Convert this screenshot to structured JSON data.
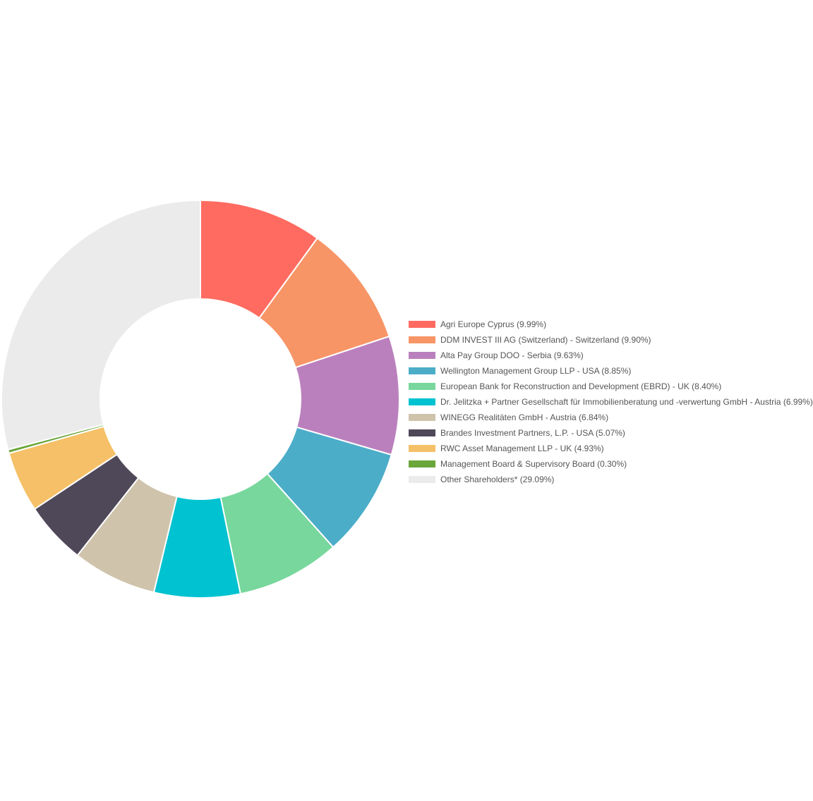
{
  "chart_data": {
    "type": "pie",
    "variant": "donut",
    "title": "",
    "legend_position": "right",
    "categories": [
      "Agri Europe Cyprus (9.99%)",
      "DDM INVEST III AG (Switzerland) - Switzerland (9.90%)",
      "Alta Pay Group DOO - Serbia (9.63%)",
      "Wellington Management Group LLP - USA (8.85%)",
      "European Bank for Reconstruction and Development (EBRD) - UK (8.40%)",
      "Dr. Jelitzka + Partner Gesellschaft für Immobilienberatung und -verwertung GmbH - Austria (6.99%)",
      "WINEGG Realitäten GmbH - Austria (6.84%)",
      "Brandes Investment Partners, L.P. - USA (5.07%)",
      "RWC Asset Management LLP - UK (4.93%)",
      "Management Board & Supervisory Board (0.30%)",
      "Other Shareholders* (29.09%)"
    ],
    "values": [
      9.99,
      9.9,
      9.63,
      8.85,
      8.4,
      6.99,
      6.84,
      5.07,
      4.93,
      0.3,
      29.09
    ],
    "colors": [
      "#ff6b61",
      "#f79567",
      "#ba80bd",
      "#4cadc9",
      "#77d79c",
      "#00c2d1",
      "#cfc3ac",
      "#4f4859",
      "#f5c067",
      "#6aa63a",
      "#ebebeb"
    ]
  }
}
